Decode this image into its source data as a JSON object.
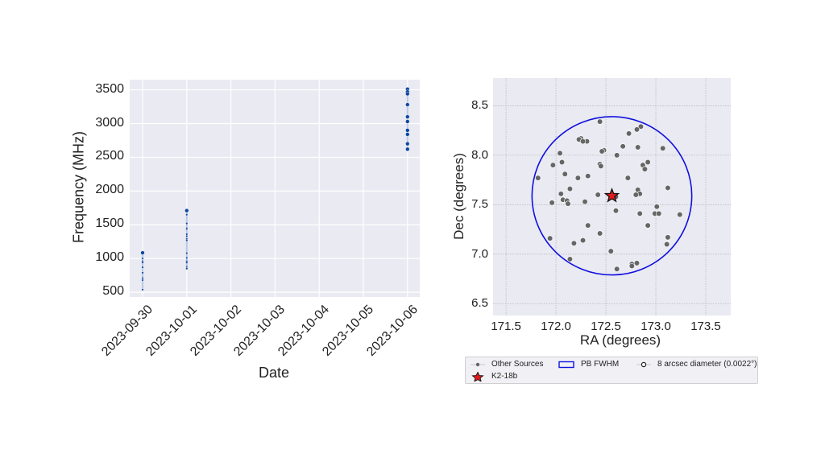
{
  "chart_data": [
    {
      "type": "scatter",
      "title": "",
      "xlabel": "Date",
      "ylabel": "Frequency (MHz)",
      "x_tick_labels": [
        "2023-09-30",
        "2023-10-01",
        "2023-10-02",
        "2023-10-03",
        "2023-10-04",
        "2023-10-05",
        "2023-10-06"
      ],
      "y_tick_labels": [
        "500",
        "1000",
        "1500",
        "2000",
        "2500",
        "3000",
        "3500"
      ],
      "ylim": [
        430,
        3650
      ],
      "grid": true,
      "color": "#0d47a1",
      "series": [
        {
          "name": "2023-09-30",
          "x": "2023-09-30",
          "values": [
            1085,
            1000,
            960,
            940,
            870,
            790,
            710,
            680,
            540
          ]
        },
        {
          "name": "2023-10-01",
          "x": "2023-10-01",
          "values": [
            1710,
            1650,
            1520,
            1450,
            1440,
            1360,
            1330,
            1290,
            1270,
            1080,
            1010,
            960,
            940,
            880,
            860,
            850
          ]
        },
        {
          "name": "2023-10-06",
          "x": "2023-10-06",
          "values": [
            3510,
            3470,
            3440,
            3280,
            3100,
            3030,
            2900,
            2840,
            2700,
            2620
          ]
        }
      ]
    },
    {
      "type": "scatter",
      "title": "",
      "xlabel": "RA (degrees)",
      "ylabel": "Dec (degrees)",
      "x_tick_labels": [
        "171.5",
        "172.0",
        "172.5",
        "173.0",
        "173.5"
      ],
      "y_tick_labels": [
        "6.5",
        "7.0",
        "7.5",
        "8.0",
        "8.5"
      ],
      "xlim": [
        171.37,
        173.75
      ],
      "ylim": [
        6.38,
        8.78
      ],
      "grid": true,
      "legend": [
        "Other Sources",
        "PB FWHM",
        "8 arcsec diameter (0.0022°)",
        "K2-18b"
      ],
      "legend_position": "below",
      "target": {
        "name": "K2-18b",
        "ra": 172.56,
        "dec": 7.59,
        "color": "#e31a1c"
      },
      "pb_fwhm": {
        "center_ra": 172.56,
        "center_dec": 7.59,
        "radius": 0.8,
        "color": "#1010e0"
      },
      "series": [
        {
          "name": "Other Sources",
          "color": "#666666",
          "points": [
            [
              172.44,
              8.34
            ],
            [
              172.25,
              8.17
            ],
            [
              172.23,
              8.16
            ],
            [
              172.31,
              8.14
            ],
            [
              172.27,
              8.14
            ],
            [
              172.85,
              8.29
            ],
            [
              172.81,
              8.26
            ],
            [
              172.73,
              8.22
            ],
            [
              172.67,
              8.09
            ],
            [
              172.82,
              8.08
            ],
            [
              173.07,
              8.07
            ],
            [
              172.48,
              8.05
            ],
            [
              172.46,
              8.04
            ],
            [
              172.61,
              8.0
            ],
            [
              172.04,
              8.02
            ],
            [
              171.97,
              7.9
            ],
            [
              172.06,
              7.93
            ],
            [
              172.44,
              7.91
            ],
            [
              172.45,
              7.89
            ],
            [
              172.87,
              7.9
            ],
            [
              172.92,
              7.93
            ],
            [
              172.89,
              7.86
            ],
            [
              172.09,
              7.81
            ],
            [
              172.22,
              7.77
            ],
            [
              172.32,
              7.79
            ],
            [
              172.72,
              7.77
            ],
            [
              171.82,
              7.77
            ],
            [
              173.12,
              7.67
            ],
            [
              172.14,
              7.66
            ],
            [
              172.82,
              7.65
            ],
            [
              172.05,
              7.61
            ],
            [
              172.42,
              7.6
            ],
            [
              172.84,
              7.61
            ],
            [
              172.8,
              7.6
            ],
            [
              172.6,
              7.58
            ],
            [
              172.07,
              7.55
            ],
            [
              172.11,
              7.54
            ],
            [
              172.12,
              7.51
            ],
            [
              172.29,
              7.53
            ],
            [
              171.96,
              7.52
            ],
            [
              172.6,
              7.44
            ],
            [
              173.01,
              7.48
            ],
            [
              172.99,
              7.41
            ],
            [
              173.03,
              7.41
            ],
            [
              172.84,
              7.41
            ],
            [
              173.24,
              7.4
            ],
            [
              172.92,
              7.29
            ],
            [
              172.32,
              7.29
            ],
            [
              172.44,
              7.21
            ],
            [
              171.94,
              7.16
            ],
            [
              172.18,
              7.11
            ],
            [
              172.27,
              7.14
            ],
            [
              173.12,
              7.17
            ],
            [
              173.11,
              7.1
            ],
            [
              172.55,
              7.03
            ],
            [
              172.14,
              6.95
            ],
            [
              172.76,
              6.9
            ],
            [
              172.76,
              6.88
            ],
            [
              172.81,
              6.91
            ],
            [
              172.61,
              6.85
            ]
          ]
        }
      ]
    }
  ],
  "legend": {
    "other_sources": "Other Sources",
    "pb_fwhm": "PB FWHM",
    "arcsec": "8 arcsec diameter (0.0022°)",
    "target": "K2-18b"
  }
}
